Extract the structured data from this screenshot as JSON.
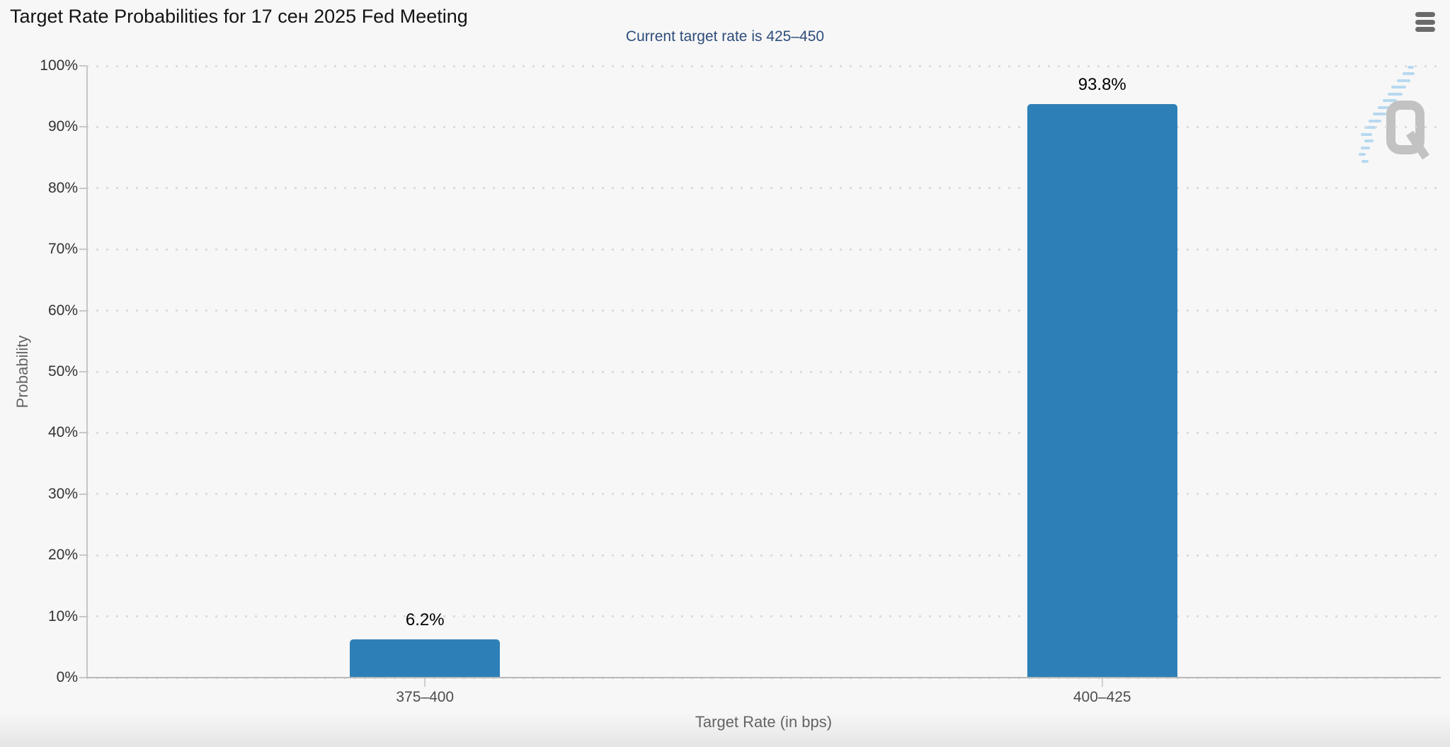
{
  "chart_data": {
    "type": "bar",
    "title": "Target Rate Probabilities for 17 сен 2025 Fed Meeting",
    "subtitle": "Current target rate is 425–450",
    "categories": [
      "375–400",
      "400–425"
    ],
    "values": [
      6.2,
      93.8
    ],
    "value_labels": [
      "6.2%",
      "93.8%"
    ],
    "xlabel": "Target Rate (in bps)",
    "ylabel": "Probability",
    "ylim": [
      0,
      100
    ],
    "ytick_labels": [
      "0%",
      "10%",
      "20%",
      "30%",
      "40%",
      "50%",
      "60%",
      "70%",
      "80%",
      "90%",
      "100%"
    ],
    "grid": "dotted-horizontal",
    "legend_position": "none",
    "bar_color": "#2d80b7",
    "subtitle_color": "#2e4d7b",
    "background_color": "#f7f7f7"
  },
  "icons": {
    "menu": "hamburger-menu-icon",
    "watermark": "quikstrike-q-logo"
  }
}
